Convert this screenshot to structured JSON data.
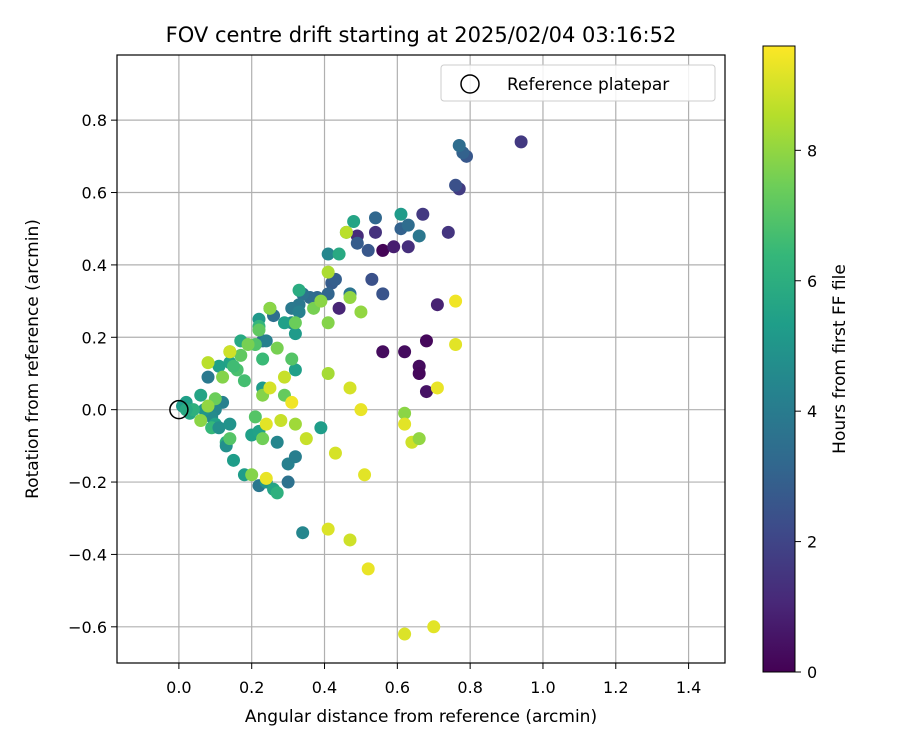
{
  "chart_data": {
    "type": "scatter",
    "title": "FOV centre drift starting at 2025/02/04 03:16:52",
    "xlabel": "Angular distance from reference (arcmin)",
    "ylabel": "Rotation from reference (arcmin)",
    "xlim": [
      -0.17,
      1.5
    ],
    "ylim": [
      -0.7,
      0.98
    ],
    "xticks": [
      0.0,
      0.2,
      0.4,
      0.6,
      0.8,
      1.0,
      1.2,
      1.4
    ],
    "xtick_labels": [
      "0.0",
      "0.2",
      "0.4",
      "0.6",
      "0.8",
      "1.0",
      "1.2",
      "1.4"
    ],
    "yticks": [
      -0.6,
      -0.4,
      -0.2,
      0.0,
      0.2,
      0.4,
      0.6,
      0.8
    ],
    "ytick_labels": [
      "−0.6",
      "−0.4",
      "−0.2",
      "0.0",
      "0.2",
      "0.4",
      "0.6",
      "0.8"
    ],
    "grid": true,
    "legend": {
      "position": "top-right",
      "label": "Reference platepar"
    },
    "reference_point": {
      "x": 0.0,
      "y": 0.0
    },
    "colorbar": {
      "label": "Hours from first FF file",
      "range": [
        0,
        9.6
      ],
      "ticks": [
        0,
        2,
        4,
        6,
        8
      ],
      "tick_labels": [
        "0",
        "2",
        "4",
        "6",
        "8"
      ],
      "colormap": "viridis",
      "stops": [
        "#440154",
        "#482878",
        "#3e4989",
        "#31688e",
        "#26828e",
        "#1f9e89",
        "#35b779",
        "#6ece58",
        "#b5de2b",
        "#fde725"
      ]
    },
    "points": [
      {
        "x": 0.56,
        "y": 0.44,
        "t": 0.1
      },
      {
        "x": 0.59,
        "y": 0.45,
        "t": 0.8
      },
      {
        "x": 0.63,
        "y": 0.45,
        "t": 1.3
      },
      {
        "x": 0.56,
        "y": 0.16,
        "t": 0.3
      },
      {
        "x": 0.62,
        "y": 0.16,
        "t": 0.3
      },
      {
        "x": 0.68,
        "y": 0.19,
        "t": 0.2
      },
      {
        "x": 0.66,
        "y": 0.12,
        "t": 0.3
      },
      {
        "x": 0.66,
        "y": 0.1,
        "t": 0.2
      },
      {
        "x": 0.68,
        "y": 0.05,
        "t": 0.5
      },
      {
        "x": 0.71,
        "y": 0.29,
        "t": 0.9
      },
      {
        "x": 0.44,
        "y": 0.28,
        "t": 1.0
      },
      {
        "x": 0.49,
        "y": 0.48,
        "t": 1.2
      },
      {
        "x": 0.54,
        "y": 0.49,
        "t": 1.4
      },
      {
        "x": 0.67,
        "y": 0.54,
        "t": 1.6
      },
      {
        "x": 0.74,
        "y": 0.49,
        "t": 1.5
      },
      {
        "x": 0.94,
        "y": 0.74,
        "t": 1.6
      },
      {
        "x": 0.77,
        "y": 0.61,
        "t": 1.7
      },
      {
        "x": 0.76,
        "y": 0.62,
        "t": 2.4
      },
      {
        "x": 0.79,
        "y": 0.7,
        "t": 2.6
      },
      {
        "x": 0.78,
        "y": 0.71,
        "t": 3.0
      },
      {
        "x": 0.77,
        "y": 0.73,
        "t": 3.4
      },
      {
        "x": 0.53,
        "y": 0.36,
        "t": 2.4
      },
      {
        "x": 0.56,
        "y": 0.32,
        "t": 2.5
      },
      {
        "x": 0.52,
        "y": 0.44,
        "t": 2.6
      },
      {
        "x": 0.49,
        "y": 0.46,
        "t": 2.8
      },
      {
        "x": 0.54,
        "y": 0.53,
        "t": 3.2
      },
      {
        "x": 0.61,
        "y": 0.5,
        "t": 3.0
      },
      {
        "x": 0.63,
        "y": 0.51,
        "t": 3.4
      },
      {
        "x": 0.66,
        "y": 0.48,
        "t": 3.8
      },
      {
        "x": 0.42,
        "y": 0.35,
        "t": 2.8
      },
      {
        "x": 0.43,
        "y": 0.36,
        "t": 2.9
      },
      {
        "x": 0.41,
        "y": 0.32,
        "t": 3.1
      },
      {
        "x": 0.38,
        "y": 0.31,
        "t": 3.2
      },
      {
        "x": 0.36,
        "y": 0.31,
        "t": 3.4
      },
      {
        "x": 0.34,
        "y": 0.32,
        "t": 3.6
      },
      {
        "x": 0.33,
        "y": 0.29,
        "t": 3.8
      },
      {
        "x": 0.31,
        "y": 0.28,
        "t": 3.9
      },
      {
        "x": 0.33,
        "y": 0.27,
        "t": 4.2
      },
      {
        "x": 0.31,
        "y": 0.24,
        "t": 4.6
      },
      {
        "x": 0.26,
        "y": 0.26,
        "t": 3.5
      },
      {
        "x": 0.23,
        "y": 0.19,
        "t": 3.5
      },
      {
        "x": 0.24,
        "y": 0.19,
        "t": 4.2
      },
      {
        "x": 0.41,
        "y": 0.43,
        "t": 4.4
      },
      {
        "x": 0.47,
        "y": 0.32,
        "t": 3.7
      },
      {
        "x": 0.46,
        "y": 0.49,
        "t": 4.5
      },
      {
        "x": 0.61,
        "y": 0.54,
        "t": 5.2
      },
      {
        "x": 0.48,
        "y": 0.52,
        "t": 5.6
      },
      {
        "x": 0.44,
        "y": 0.43,
        "t": 5.8
      },
      {
        "x": 0.32,
        "y": 0.21,
        "t": 5.2
      },
      {
        "x": 0.32,
        "y": 0.11,
        "t": 5.4
      },
      {
        "x": 0.33,
        "y": 0.33,
        "t": 5.9
      },
      {
        "x": 0.29,
        "y": 0.24,
        "t": 5.4
      },
      {
        "x": 0.25,
        "y": 0.28,
        "t": 5.9
      },
      {
        "x": 0.22,
        "y": 0.25,
        "t": 5.1
      },
      {
        "x": 0.22,
        "y": 0.23,
        "t": 6.3
      },
      {
        "x": 0.17,
        "y": 0.19,
        "t": 5.8
      },
      {
        "x": 0.14,
        "y": 0.13,
        "t": 5.5
      },
      {
        "x": 0.11,
        "y": 0.12,
        "t": 5.4
      },
      {
        "x": 0.08,
        "y": 0.09,
        "t": 3.9
      },
      {
        "x": 0.12,
        "y": 0.02,
        "t": 4.2
      },
      {
        "x": 0.1,
        "y": 0.0,
        "t": 4.4
      },
      {
        "x": 0.09,
        "y": -0.02,
        "t": 4.6
      },
      {
        "x": 0.07,
        "y": 0.0,
        "t": 5.0
      },
      {
        "x": 0.06,
        "y": 0.04,
        "t": 5.6
      },
      {
        "x": 0.02,
        "y": 0.02,
        "t": 5.4
      },
      {
        "x": 0.01,
        "y": 0.01,
        "t": 5.2
      },
      {
        "x": 0.03,
        "y": -0.01,
        "t": 5.7
      },
      {
        "x": 0.04,
        "y": 0.0,
        "t": 6.1
      },
      {
        "x": 0.02,
        "y": 0.0,
        "t": 5.8
      },
      {
        "x": 0.1,
        "y": -0.04,
        "t": 5.5
      },
      {
        "x": 0.09,
        "y": -0.05,
        "t": 6.4
      },
      {
        "x": 0.11,
        "y": -0.05,
        "t": 4.8
      },
      {
        "x": 0.14,
        "y": -0.04,
        "t": 4.9
      },
      {
        "x": 0.13,
        "y": -0.09,
        "t": 6.0
      },
      {
        "x": 0.13,
        "y": -0.1,
        "t": 4.8
      },
      {
        "x": 0.15,
        "y": -0.14,
        "t": 5.3
      },
      {
        "x": 0.2,
        "y": -0.07,
        "t": 5.4
      },
      {
        "x": 0.22,
        "y": -0.21,
        "t": 3.8
      },
      {
        "x": 0.24,
        "y": -0.2,
        "t": 5.0
      },
      {
        "x": 0.26,
        "y": -0.22,
        "t": 5.6
      },
      {
        "x": 0.27,
        "y": -0.23,
        "t": 6.1
      },
      {
        "x": 0.27,
        "y": -0.09,
        "t": 4.4
      },
      {
        "x": 0.3,
        "y": -0.15,
        "t": 4.2
      },
      {
        "x": 0.3,
        "y": -0.2,
        "t": 3.6
      },
      {
        "x": 0.32,
        "y": -0.13,
        "t": 4.1
      },
      {
        "x": 0.34,
        "y": -0.34,
        "t": 4.4
      },
      {
        "x": 0.39,
        "y": -0.05,
        "t": 5.3
      },
      {
        "x": 0.18,
        "y": -0.18,
        "t": 5.3
      },
      {
        "x": 0.22,
        "y": -0.06,
        "t": 5.5
      },
      {
        "x": 0.23,
        "y": 0.06,
        "t": 5.2
      },
      {
        "x": 0.23,
        "y": 0.14,
        "t": 6.5
      },
      {
        "x": 0.21,
        "y": 0.18,
        "t": 6.9
      },
      {
        "x": 0.22,
        "y": 0.22,
        "t": 7.2
      },
      {
        "x": 0.19,
        "y": 0.18,
        "t": 7.6
      },
      {
        "x": 0.18,
        "y": 0.08,
        "t": 6.7
      },
      {
        "x": 0.16,
        "y": 0.11,
        "t": 6.8
      },
      {
        "x": 0.15,
        "y": 0.12,
        "t": 6.6
      },
      {
        "x": 0.17,
        "y": 0.15,
        "t": 7.2
      },
      {
        "x": 0.14,
        "y": 0.16,
        "t": 7.5
      },
      {
        "x": 0.12,
        "y": 0.09,
        "t": 7.8
      },
      {
        "x": 0.1,
        "y": 0.03,
        "t": 7.4
      },
      {
        "x": 0.08,
        "y": 0.01,
        "t": 8.0
      },
      {
        "x": 0.06,
        "y": -0.03,
        "t": 7.9
      },
      {
        "x": 0.08,
        "y": 0.13,
        "t": 8.6
      },
      {
        "x": 0.14,
        "y": 0.16,
        "t": 8.9
      },
      {
        "x": 0.14,
        "y": -0.08,
        "t": 7.0
      },
      {
        "x": 0.21,
        "y": -0.02,
        "t": 7.0
      },
      {
        "x": 0.23,
        "y": -0.08,
        "t": 7.5
      },
      {
        "x": 0.2,
        "y": -0.18,
        "t": 7.8
      },
      {
        "x": 0.23,
        "y": 0.04,
        "t": 7.8
      },
      {
        "x": 0.27,
        "y": 0.17,
        "t": 7.6
      },
      {
        "x": 0.25,
        "y": 0.28,
        "t": 7.9
      },
      {
        "x": 0.24,
        "y": -0.04,
        "t": 9.2
      },
      {
        "x": 0.24,
        "y": -0.19,
        "t": 9.3
      },
      {
        "x": 0.25,
        "y": 0.06,
        "t": 9.0
      },
      {
        "x": 0.29,
        "y": 0.09,
        "t": 8.8
      },
      {
        "x": 0.28,
        "y": -0.03,
        "t": 8.8
      },
      {
        "x": 0.29,
        "y": 0.04,
        "t": 7.3
      },
      {
        "x": 0.31,
        "y": 0.14,
        "t": 7.0
      },
      {
        "x": 0.31,
        "y": 0.02,
        "t": 9.4
      },
      {
        "x": 0.32,
        "y": -0.04,
        "t": 8.2
      },
      {
        "x": 0.35,
        "y": -0.08,
        "t": 8.8
      },
      {
        "x": 0.32,
        "y": 0.24,
        "t": 7.4
      },
      {
        "x": 0.37,
        "y": 0.28,
        "t": 7.6
      },
      {
        "x": 0.39,
        "y": 0.3,
        "t": 7.9
      },
      {
        "x": 0.41,
        "y": 0.24,
        "t": 7.8
      },
      {
        "x": 0.41,
        "y": 0.38,
        "t": 8.4
      },
      {
        "x": 0.41,
        "y": 0.1,
        "t": 8.3
      },
      {
        "x": 0.43,
        "y": -0.12,
        "t": 9.0
      },
      {
        "x": 0.41,
        "y": -0.33,
        "t": 9.1
      },
      {
        "x": 0.46,
        "y": 0.49,
        "t": 8.6
      },
      {
        "x": 0.47,
        "y": 0.31,
        "t": 8.0
      },
      {
        "x": 0.5,
        "y": 0.27,
        "t": 8.0
      },
      {
        "x": 0.47,
        "y": 0.06,
        "t": 9.0
      },
      {
        "x": 0.5,
        "y": 0.0,
        "t": 9.3
      },
      {
        "x": 0.47,
        "y": -0.36,
        "t": 8.9
      },
      {
        "x": 0.51,
        "y": -0.18,
        "t": 9.2
      },
      {
        "x": 0.52,
        "y": -0.44,
        "t": 9.3
      },
      {
        "x": 0.62,
        "y": -0.01,
        "t": 7.9
      },
      {
        "x": 0.62,
        "y": -0.04,
        "t": 9.2
      },
      {
        "x": 0.64,
        "y": -0.09,
        "t": 8.9
      },
      {
        "x": 0.66,
        "y": -0.08,
        "t": 8.0
      },
      {
        "x": 0.62,
        "y": -0.62,
        "t": 9.1
      },
      {
        "x": 0.7,
        "y": -0.6,
        "t": 9.2
      },
      {
        "x": 0.71,
        "y": 0.06,
        "t": 9.3
      },
      {
        "x": 0.76,
        "y": 0.3,
        "t": 9.4
      },
      {
        "x": 0.76,
        "y": 0.18,
        "t": 9.2
      }
    ]
  }
}
